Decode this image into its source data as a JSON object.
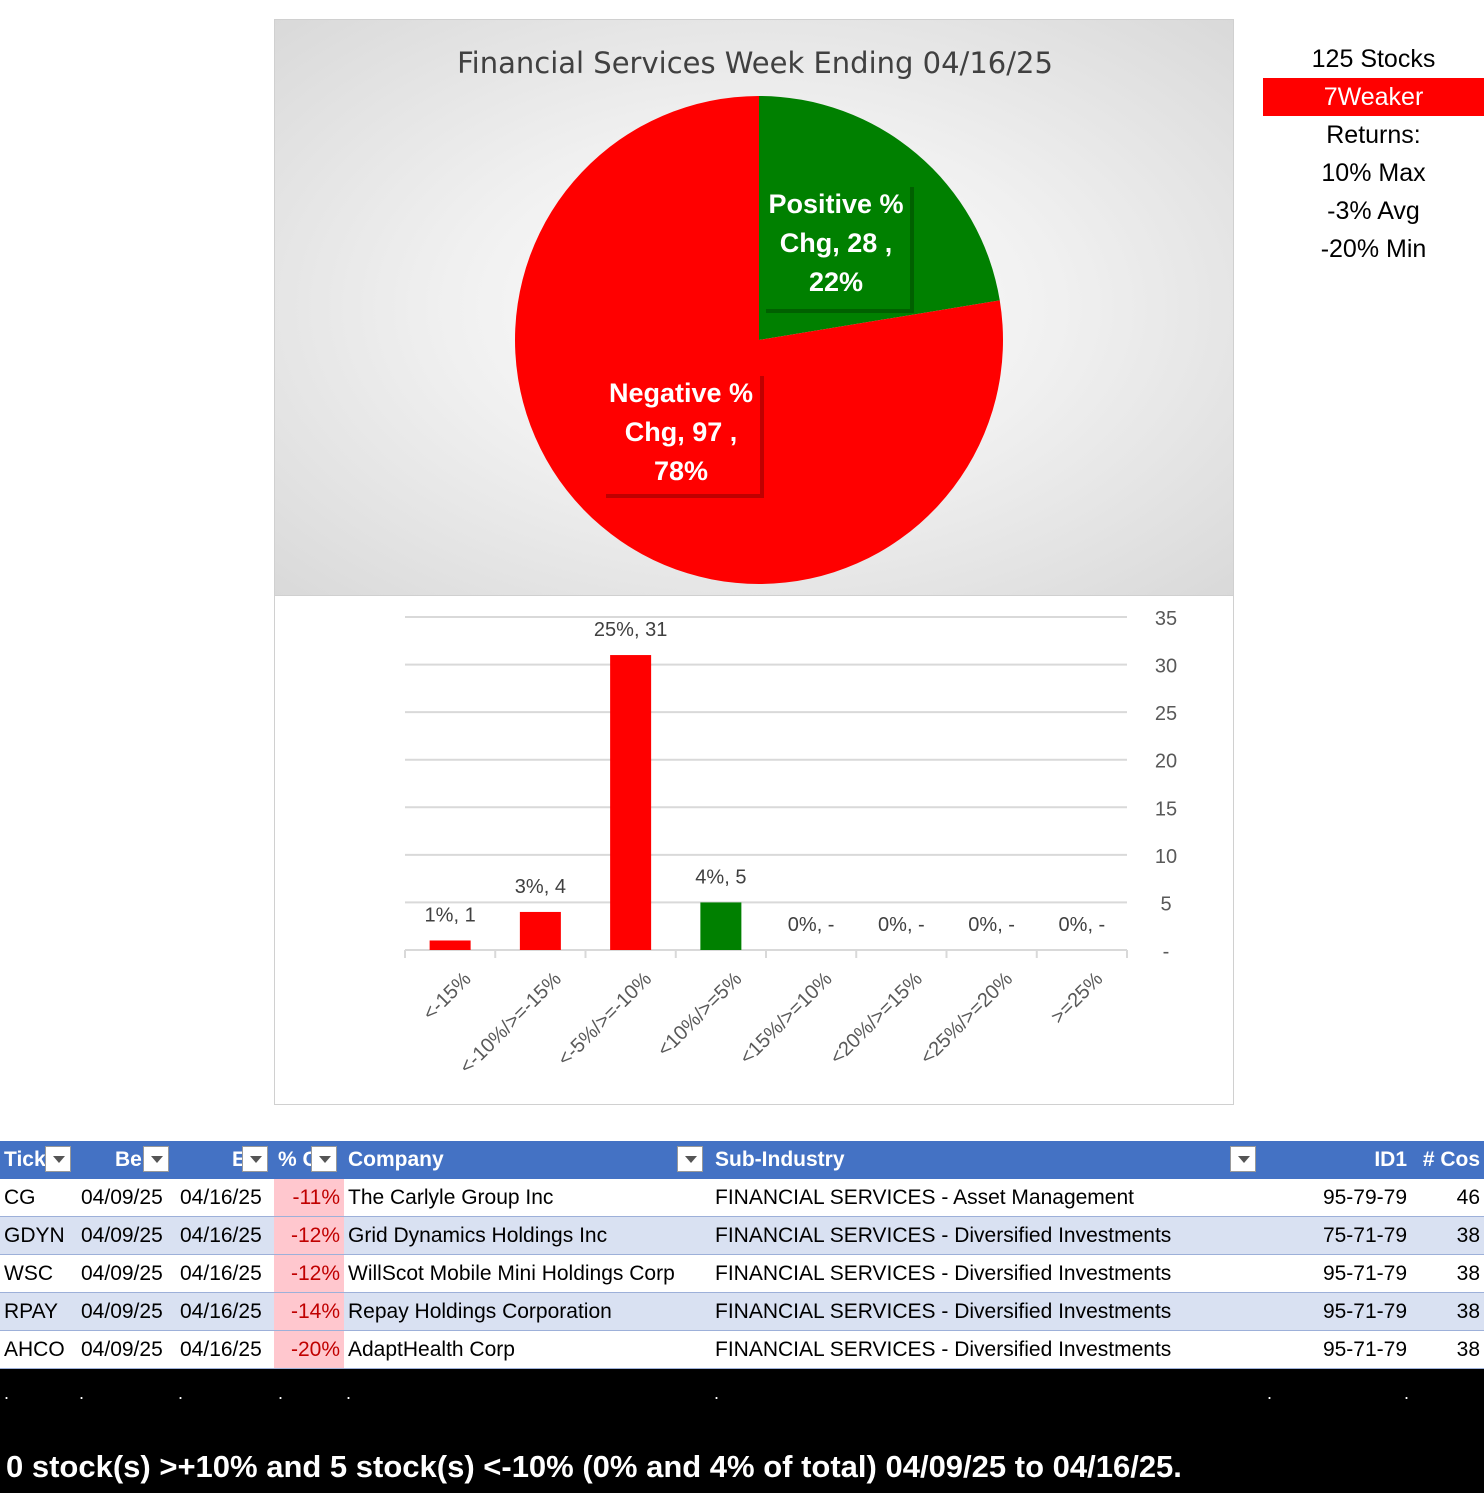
{
  "pie_chart": {
    "title": "Financial Services Week Ending 04/16/25",
    "labels": {
      "positive": [
        "Positive %",
        "Chg,  28 ,",
        "22%"
      ],
      "negative": [
        "Negative %",
        "Chg,  97 ,",
        "78%"
      ]
    },
    "colors": {
      "positive": "#008000",
      "negative": "#ff0000"
    }
  },
  "stats": {
    "stocks": "125 Stocks",
    "weaker": "7Weaker",
    "returns_label": "Returns:",
    "max": "10% Max",
    "avg": "-3% Avg",
    "min": "-20% Min"
  },
  "chart_data": [
    {
      "type": "pie",
      "title": "Financial Services Week Ending 04/16/25",
      "slices": [
        {
          "name": "Positive % Chg",
          "value": 28,
          "percent": 22,
          "color": "#008000"
        },
        {
          "name": "Negative % Chg",
          "value": 97,
          "percent": 78,
          "color": "#ff0000"
        }
      ]
    },
    {
      "type": "bar",
      "categories": [
        "<-15%",
        "<-10%/>=-15%",
        "<-5%/>=-10%",
        "<10%/>=5%",
        "<15%/>=10%",
        "<20%/>=15%",
        "<25%/>=20%",
        ">=25%"
      ],
      "values": [
        1,
        4,
        31,
        5,
        0,
        0,
        0,
        0
      ],
      "data_labels": [
        "1%,  1",
        "3%,  4",
        "25%,  31",
        "4%,  5",
        "0%,  -",
        "0%,  -",
        "0%,  -",
        "0%,  -"
      ],
      "colors": [
        "#ff0000",
        "#ff0000",
        "#ff0000",
        "#008000",
        "#ff0000",
        "#ff0000",
        "#ff0000",
        "#ff0000"
      ],
      "ylim": [
        0,
        35
      ],
      "yticks": [
        "-",
        "5",
        "10",
        "15",
        "20",
        "25",
        "30",
        "35"
      ],
      "grid": true,
      "y_axis_side": "right"
    }
  ],
  "table": {
    "headers": [
      "Tick",
      "Be",
      "E",
      "% C",
      "Company",
      "Sub-Industry",
      "ID1",
      "# Cos"
    ],
    "rows": [
      [
        "CG",
        "04/09/25",
        "04/16/25",
        "-11%",
        "The Carlyle Group Inc",
        "FINANCIAL SERVICES - Asset Management",
        "95-79-79",
        "46"
      ],
      [
        "GDYN",
        "04/09/25",
        "04/16/25",
        "-12%",
        "Grid Dynamics Holdings Inc",
        "FINANCIAL SERVICES - Diversified Investments",
        "75-71-79",
        "38"
      ],
      [
        "WSC",
        "04/09/25",
        "04/16/25",
        "-12%",
        "WillScot Mobile Mini Holdings Corp",
        "FINANCIAL SERVICES - Diversified Investments",
        "95-71-79",
        "38"
      ],
      [
        "RPAY",
        "04/09/25",
        "04/16/25",
        "-14%",
        "Repay Holdings Corporation",
        "FINANCIAL SERVICES - Diversified Investments",
        "95-71-79",
        "38"
      ],
      [
        "AHCO",
        "04/09/25",
        "04/16/25",
        "-20%",
        "AdaptHealth Corp",
        "FINANCIAL SERVICES - Diversified Investments",
        "95-71-79",
        "38"
      ]
    ]
  },
  "footer": {
    "summary": "0 stock(s) >+10% and 5 stock(s) <-10% (0% and 4% of total) 04/09/25 to 04/16/25.",
    "dot": "."
  }
}
